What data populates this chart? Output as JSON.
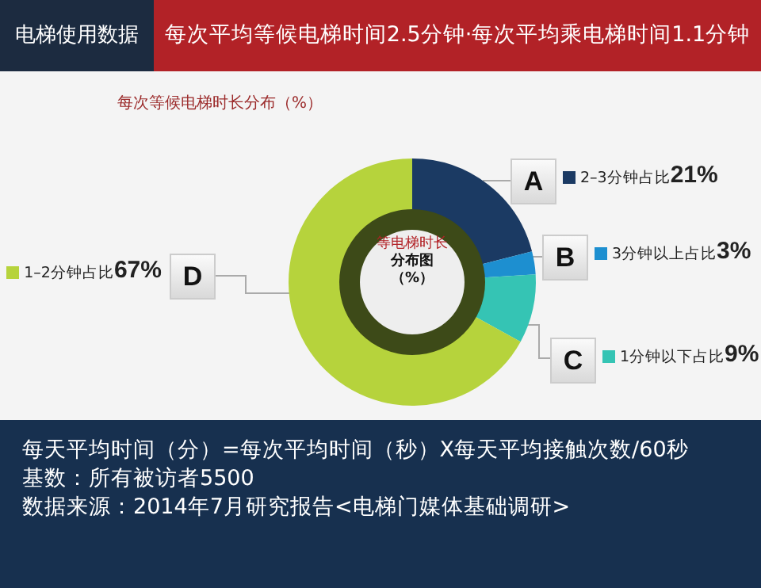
{
  "chart_data": {
    "type": "donut",
    "title": "电梯使用数据",
    "subtitle": "每次平均等候电梯时间2.5分钟·每次平均乘电梯时间1.1分钟",
    "categories": [
      "2–3分钟占比",
      "3分钟以上占比",
      "1分钟以下占比",
      "1–2分钟占比"
    ],
    "values": [
      21,
      3,
      9,
      67
    ],
    "colors": [
      "#1b3a63",
      "#1d8fd0",
      "#35c4b4",
      "#b6d33c"
    ],
    "value_labels": [
      "21%",
      "3%",
      "9%",
      "67%"
    ],
    "legend": "top left",
    "annotations": [
      "每次等候电梯时长分布（%）",
      "A",
      "B",
      "C",
      "D",
      "等电梯时长",
      "分布图",
      "（%）",
      "每天平均时间（分）=每次平均时间（秒）X每天平均接触次数/60秒",
      "基数：所有被访者5500",
      "数据来源：2014年7月研究报告<电梯门媒体基础调研>"
    ]
  }
}
